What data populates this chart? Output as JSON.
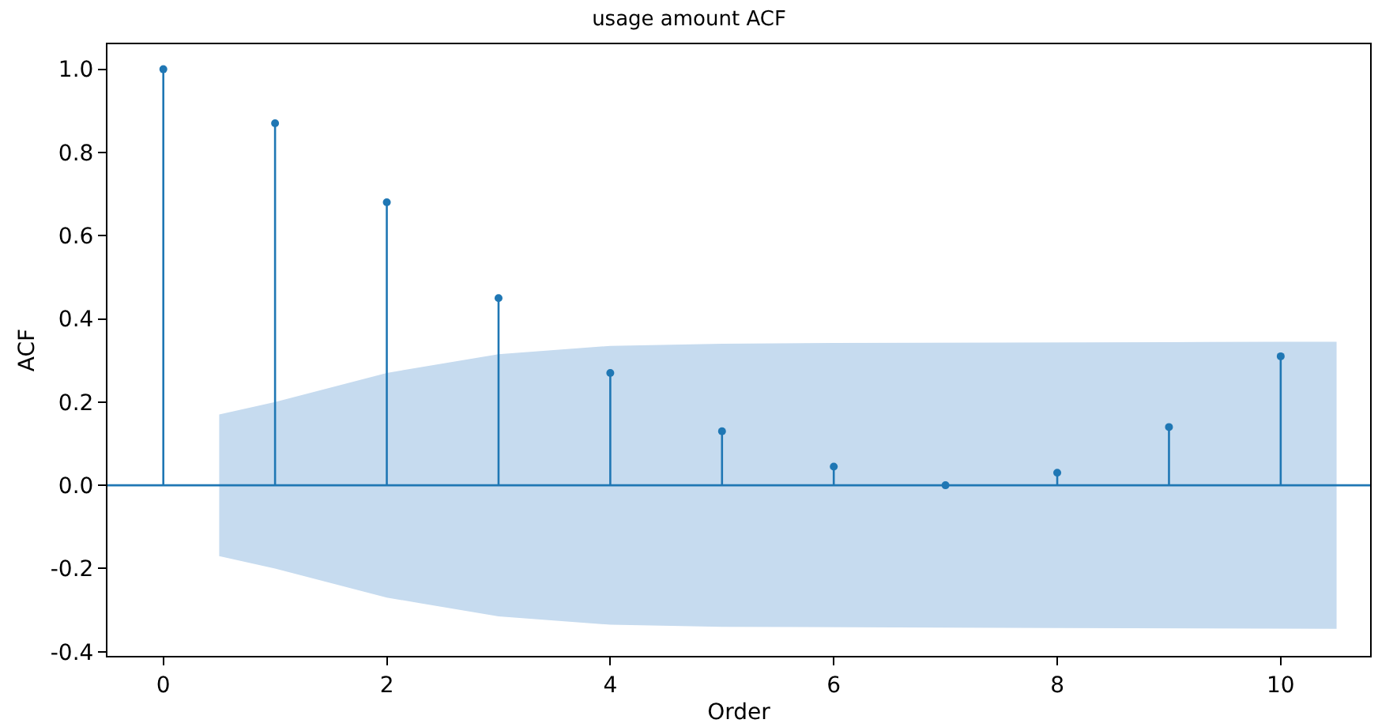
{
  "chart_data": {
    "type": "lollipop",
    "title": "usage amount ACF",
    "xlabel": "Order",
    "ylabel": "ACF",
    "x": [
      0,
      1,
      2,
      3,
      4,
      5,
      6,
      7,
      8,
      9,
      10
    ],
    "series": [
      {
        "color": "#1f77b4",
        "values": [
          1.0,
          0.87,
          0.68,
          0.45,
          0.27,
          0.13,
          0.045,
          0.0,
          0.03,
          0.14,
          0.31
        ]
      },
      {
        "type": "area",
        "color": "#c6dbef",
        "x": [
          0.5,
          1,
          2,
          3,
          4,
          5,
          6,
          7,
          8,
          9,
          10,
          10.5
        ],
        "values": [
          null,
          null,
          null,
          null,
          null,
          null,
          null,
          null,
          null,
          null,
          null,
          null
        ],
        "lower": [
          -0.17,
          -0.2,
          -0.27,
          -0.315,
          -0.335,
          -0.34,
          -0.342,
          -0.342,
          -0.343,
          -0.344,
          -0.345,
          -0.345
        ],
        "upper": [
          0.17,
          0.2,
          0.27,
          0.315,
          0.335,
          0.34,
          0.342,
          0.342,
          0.343,
          0.344,
          0.345,
          0.345
        ]
      }
    ],
    "ref_lines": [
      {
        "axis": "y",
        "value": 0,
        "color": "#1f77b4"
      }
    ],
    "xlim": [
      -0.5,
      10.8
    ],
    "ylim": [
      -0.41,
      1.06
    ],
    "xticks": [
      0,
      2,
      4,
      6,
      8,
      10
    ],
    "yticks": [
      -0.4,
      -0.2,
      {
        "value": 0,
        "label": "0.0"
      },
      0.2,
      0.4,
      0.6,
      0.8,
      {
        "value": 1,
        "label": "1.0"
      }
    ],
    "marker": "circle"
  }
}
